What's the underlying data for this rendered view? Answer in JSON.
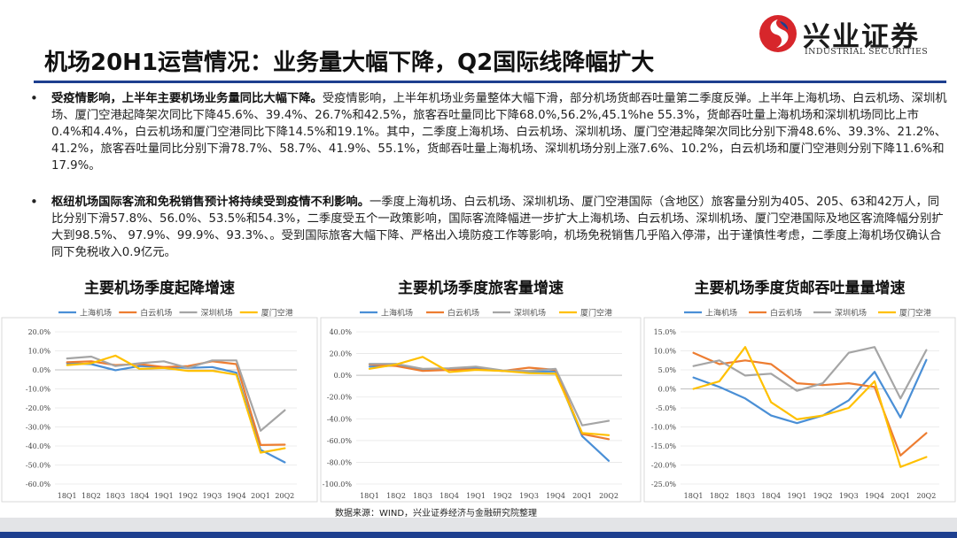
{
  "header": {
    "logo_cn": "兴业证券",
    "logo_en": "INDUSTRIAL SECURITIES",
    "title": "机场20H1运营情况：业务量大幅下降，Q2国际线降幅扩大"
  },
  "paragraphs": [
    {
      "bold": "受疫情影响，上半年主要机场业务量同比大幅下降。",
      "text": "受疫情影响，上半年机场业务量整体大幅下滑，部分机场货邮吞吐量第二季度反弹。上半年上海机场、白云机场、深圳机场、厦门空港起降架次同比下降45.6%、39.4%、26.7%和42.5%，旅客吞吐量同比下降68.0%,56.2%,45.1%he 55.3%，货邮吞吐量上海机场和深圳机场同比上市0.4%和4.4%，白云机场和厦门空港同比下降14.5%和19.1%。其中，二季度上海机场、白云机场、深圳机场、厦门空港起降架次同比分别下滑48.6%、39.3%、21.2%、41.2%，旅客吞吐量同比分别下滑78.7%、58.7%、41.9%、55.1%，货邮吞吐量上海机场、深圳机场分别上涨7.6%、10.2%，白云机场和厦门空港则分别下降11.6%和17.9%。"
    },
    {
      "bold": "枢纽机场国际客流和免税销售预计将持续受到疫情不利影响。",
      "text": "一季度上海机场、白云机场、深圳机场、厦门空港国际（含地区）旅客量分别为405、205、63和42万人，同比分别下滑57.8%、56.0%、53.5%和54.3%，二季度受五个一政策影响，国际客流降幅进一步扩大上海机场、白云机场、深圳机场、厦门空港国际及地区客流降幅分别扩大到98.5%、 97.9%、99.9%、93.3%、。受到国际旅客大幅下降、严格出入境防疫工作等影响，机场免税销售几乎陷入停滞，出于谨慎性考虑，二季度上海机场仅确认合同下免税收入0.9亿元。"
    }
  ],
  "source": "数据来源：WIND，兴业证券经济与金融研究院整理",
  "colors": {
    "brand_blue": "#1d3f8f",
    "logo_red": "#d7262b"
  },
  "chart_data": [
    {
      "type": "line",
      "title": "主要机场季度起降增速",
      "categories": [
        "18Q1",
        "18Q2",
        "18Q3",
        "18Q4",
        "19Q1",
        "19Q2",
        "19Q3",
        "19Q4",
        "20Q1",
        "20Q2"
      ],
      "y_ticks": [
        "20.0%",
        "10.0%",
        "0.0%",
        "-10.0%",
        "-20.0%",
        "-30.0%",
        "-40.0%",
        "-50.0%",
        "-60.0%"
      ],
      "ylim": [
        -60,
        20
      ],
      "legend": "top",
      "series": [
        {
          "name": "上海机场",
          "color": "#4a8fd6",
          "values": [
            3.5,
            3.0,
            -0.2,
            2.0,
            1.5,
            1.0,
            1.5,
            -1.5,
            -42.0,
            -48.6
          ]
        },
        {
          "name": "白云机场",
          "color": "#ed7d31",
          "values": [
            4.0,
            4.5,
            2.5,
            3.0,
            1.5,
            2.0,
            4.5,
            3.0,
            -39.5,
            -39.3
          ]
        },
        {
          "name": "深圳机场",
          "color": "#a5a5a5",
          "values": [
            6.0,
            7.0,
            2.0,
            3.5,
            4.5,
            1.0,
            5.0,
            5.0,
            -32.0,
            -21.2
          ]
        },
        {
          "name": "厦门空港",
          "color": "#ffc000",
          "values": [
            2.5,
            3.5,
            7.5,
            0.5,
            1.0,
            -0.5,
            -0.5,
            -2.5,
            -43.5,
            -41.2
          ]
        }
      ]
    },
    {
      "type": "line",
      "title": "主要机场季度旅客量增速",
      "categories": [
        "18Q1",
        "18Q2",
        "18Q3",
        "18Q4",
        "19Q1",
        "19Q2",
        "19Q3",
        "19Q4",
        "20Q1",
        "20Q2"
      ],
      "y_ticks": [
        "40.0%",
        "20.0%",
        "0.0%",
        "-20.0%",
        "-40.0%",
        "-60.0%",
        "-80.0%",
        "-100.0%"
      ],
      "ylim": [
        -100,
        40
      ],
      "legend": "top",
      "series": [
        {
          "name": "上海机场",
          "color": "#4a8fd6",
          "values": [
            8.0,
            9.0,
            5.0,
            5.0,
            7.0,
            4.0,
            3.5,
            3.5,
            -56.0,
            -78.7
          ]
        },
        {
          "name": "白云机场",
          "color": "#ed7d31",
          "values": [
            10.0,
            8.5,
            4.0,
            5.0,
            5.5,
            4.0,
            7.0,
            5.0,
            -54.0,
            -58.7
          ]
        },
        {
          "name": "深圳机场",
          "color": "#a5a5a5",
          "values": [
            10.5,
            10.5,
            6.0,
            6.5,
            8.0,
            4.5,
            4.0,
            6.0,
            -46.0,
            -41.9
          ]
        },
        {
          "name": "厦门空港",
          "color": "#ffc000",
          "values": [
            6.0,
            10.0,
            17.0,
            3.0,
            5.0,
            4.0,
            2.0,
            1.5,
            -53.0,
            -55.1
          ]
        }
      ]
    },
    {
      "type": "line",
      "title": "主要机场季度货邮吞吐量量增速",
      "categories": [
        "18Q1",
        "18Q2",
        "18Q3",
        "18Q4",
        "19Q1",
        "19Q2",
        "19Q3",
        "19Q4",
        "20Q1",
        "20Q2"
      ],
      "y_ticks": [
        "15.0%",
        "10.0%",
        "5.0%",
        "0.0%",
        "-5.0%",
        "-10.0%",
        "-15.0%",
        "-20.0%",
        "-25.0%"
      ],
      "ylim": [
        -25,
        15
      ],
      "legend": "top",
      "series": [
        {
          "name": "上海机场",
          "color": "#4a8fd6",
          "values": [
            3.0,
            0.5,
            -2.5,
            -7.0,
            -9.0,
            -7.0,
            -3.0,
            4.5,
            -7.5,
            7.6
          ]
        },
        {
          "name": "白云机场",
          "color": "#ed7d31",
          "values": [
            9.5,
            6.5,
            7.5,
            6.5,
            1.5,
            1.0,
            1.5,
            0.5,
            -17.5,
            -11.6
          ]
        },
        {
          "name": "深圳机场",
          "color": "#a5a5a5",
          "values": [
            6.0,
            7.5,
            3.5,
            4.0,
            -0.5,
            1.5,
            9.5,
            11.0,
            -2.5,
            10.2
          ]
        },
        {
          "name": "厦门空港",
          "color": "#ffc000",
          "values": [
            0.0,
            2.0,
            11.0,
            -3.5,
            -8.0,
            -7.0,
            -5.0,
            2.0,
            -20.5,
            -17.9
          ]
        }
      ]
    }
  ]
}
